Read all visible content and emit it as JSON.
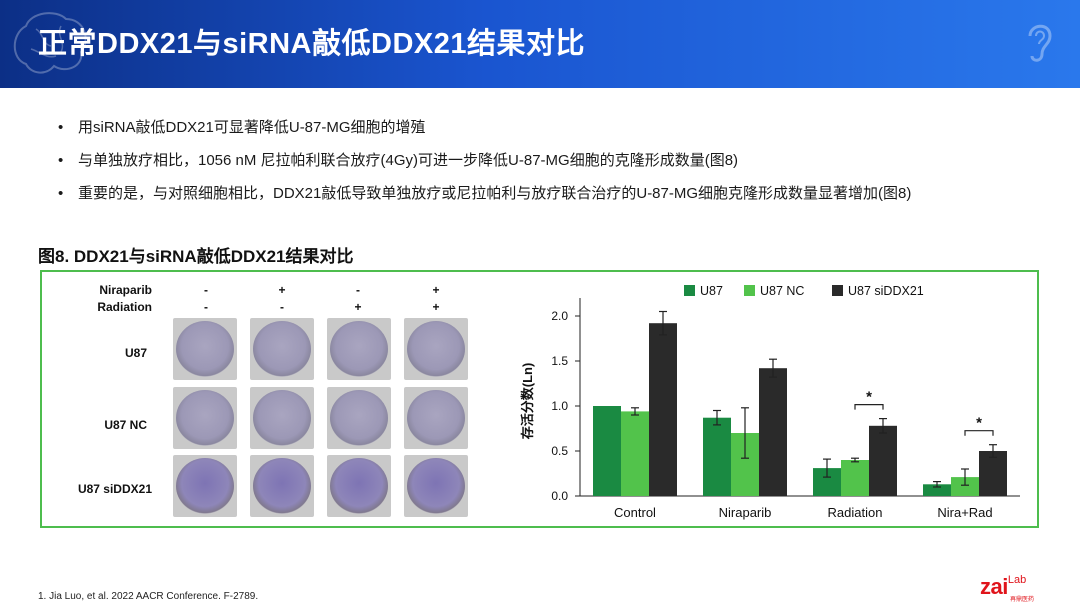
{
  "header": {
    "title": "正常DDX21与siRNA敲低DDX21结果对比"
  },
  "bullets": [
    "用siRNA敲低DDX21可显著降低U-87-MG细胞的增殖",
    "与单独放疗相比，1056 nM 尼拉帕利联合放疗(4Gy)可进一步降低U-87-MG细胞的克隆形成数量(图8)",
    "重要的是，与对照细胞相比，DDX21敲低导致单独放疗或尼拉帕利与放疗联合治疗的U-87-MG细胞克隆形成数量显著增加(图8)"
  ],
  "figure": {
    "title": "图8. DDX21与siRNA敲低DDX21结果对比",
    "treatment_labels": {
      "niraparib": "Niraparib",
      "radiation": "Radiation"
    },
    "niraparib_signs": [
      "-",
      "+",
      "-",
      "+"
    ],
    "radiation_signs": [
      "-",
      "-",
      "+",
      "+"
    ],
    "row_labels": [
      "U87",
      "U87 NC",
      "U87 siDDX21"
    ]
  },
  "chart_data": {
    "type": "bar",
    "categories": [
      "Control",
      "Niraparib",
      "Radiation",
      "Nira+Rad"
    ],
    "ylabel": "存活分数(Ln)",
    "ylim": [
      0,
      2.2
    ],
    "yticks": [
      "0.0",
      "0.5",
      "1.0",
      "1.5",
      "2.0"
    ],
    "ytick_values": [
      0,
      0.5,
      1.0,
      1.5,
      2.0
    ],
    "series": [
      {
        "name": "U87",
        "color": "#1a8a42",
        "values": [
          1.0,
          0.87,
          0.31,
          0.13
        ],
        "errors": [
          0.0,
          0.08,
          0.1,
          0.03
        ]
      },
      {
        "name": "U87 NC",
        "color": "#52c34b",
        "values": [
          0.94,
          0.7,
          0.4,
          0.21
        ],
        "errors": [
          0.04,
          0.28,
          0.02,
          0.09
        ]
      },
      {
        "name": "U87 siDDX21",
        "color": "#2a2a2a",
        "values": [
          1.92,
          1.42,
          0.78,
          0.5
        ],
        "errors": [
          0.13,
          0.1,
          0.08,
          0.07
        ]
      }
    ],
    "annotations": [
      {
        "category": "Radiation",
        "text": "*"
      },
      {
        "category": "Nira+Rad",
        "text": "*"
      }
    ]
  },
  "footnote": "1.   Jia Luo, et al. 2022 AACR Conference. F-2789.",
  "logo": {
    "text": "zai",
    "suffix": "Lab",
    "subtext": "再鼎医药"
  }
}
